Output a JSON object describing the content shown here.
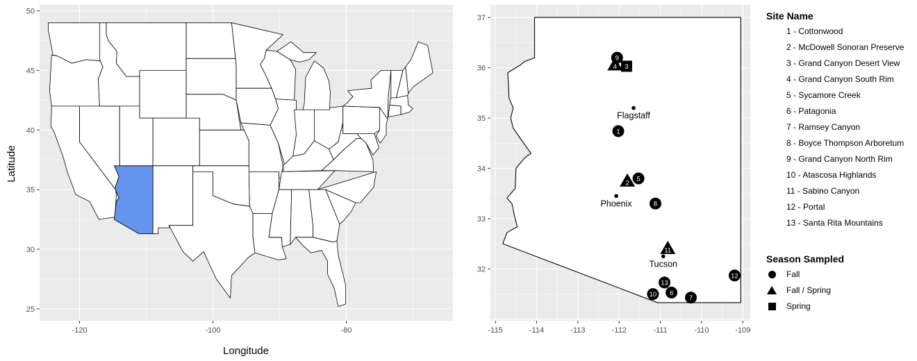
{
  "us_map": {
    "x_axis_title": "Longitude",
    "y_axis_title": "Latitude",
    "x_ticks": [
      -120,
      -100,
      -80
    ],
    "y_ticks": [
      25,
      30,
      35,
      40,
      45,
      50
    ],
    "x_range": [
      -126,
      -64
    ],
    "y_range": [
      24,
      50.5
    ],
    "highlighted_state": "Arizona",
    "highlight_color": "#6495ED",
    "panel_background": "#EBEBEB",
    "grid_color": "#FFFFFF"
  },
  "az_map": {
    "x_ticks": [
      -115,
      -114,
      -113,
      -112,
      -111,
      -110,
      -109
    ],
    "y_ticks": [
      32,
      33,
      34,
      35,
      36,
      37
    ],
    "x_range": [
      -115.12,
      -108.82
    ],
    "y_range": [
      30.97,
      37.25
    ],
    "cities": [
      {
        "name": "Flagstaff",
        "lon": -111.65,
        "lat": 35.2
      },
      {
        "name": "Phoenix",
        "lon": -112.07,
        "lat": 33.45
      },
      {
        "name": "Tucson",
        "lon": -110.93,
        "lat": 32.25
      }
    ],
    "sites": [
      {
        "num": "1",
        "lon": -112.02,
        "lat": 34.74,
        "season": "Fall"
      },
      {
        "num": "2",
        "lon": -111.8,
        "lat": 33.72,
        "season": "Fall / Spring"
      },
      {
        "num": "3",
        "lon": -111.82,
        "lat": 36.03,
        "season": "Spring"
      },
      {
        "num": "4",
        "lon": -112.1,
        "lat": 36.03,
        "season": "Fall / Spring"
      },
      {
        "num": "5",
        "lon": -111.53,
        "lat": 33.8,
        "season": "Fall"
      },
      {
        "num": "6",
        "lon": -110.73,
        "lat": 31.53,
        "season": "Fall"
      },
      {
        "num": "7",
        "lon": -110.26,
        "lat": 31.43,
        "season": "Fall"
      },
      {
        "num": "8",
        "lon": -111.12,
        "lat": 33.3,
        "season": "Fall"
      },
      {
        "num": "9",
        "lon": -112.05,
        "lat": 36.2,
        "season": "Fall"
      },
      {
        "num": "10",
        "lon": -111.18,
        "lat": 31.5,
        "season": "Fall"
      },
      {
        "num": "11",
        "lon": -110.82,
        "lat": 32.38,
        "season": "Fall / Spring"
      },
      {
        "num": "12",
        "lon": -109.2,
        "lat": 31.87,
        "season": "Fall"
      },
      {
        "num": "13",
        "lon": -110.9,
        "lat": 31.73,
        "season": "Fall"
      }
    ]
  },
  "legend": {
    "site_title": "Site Name",
    "sites": [
      "1 - Cottonwood",
      "2 - McDowell Sonoran Preserve",
      "3 - Grand Canyon Desert View",
      "4 - Grand Canyon South Rim",
      "5 - Sycamore Creek",
      "6 - Patagonia",
      "7 - Ramsey Canyon",
      "8 - Boyce Thompson Arboretum",
      "9 - Grand Canyon North Rim",
      "10 - Atascosa Highlands",
      "11 - Sabino Canyon",
      "12 - Portal",
      "13 - Santa Rita Mountains"
    ],
    "season_title": "Season Sampled",
    "seasons": [
      {
        "label": "Fall",
        "shape": "circle"
      },
      {
        "label": "Fall / Spring",
        "shape": "triangle"
      },
      {
        "label": "Spring",
        "shape": "square"
      }
    ]
  }
}
